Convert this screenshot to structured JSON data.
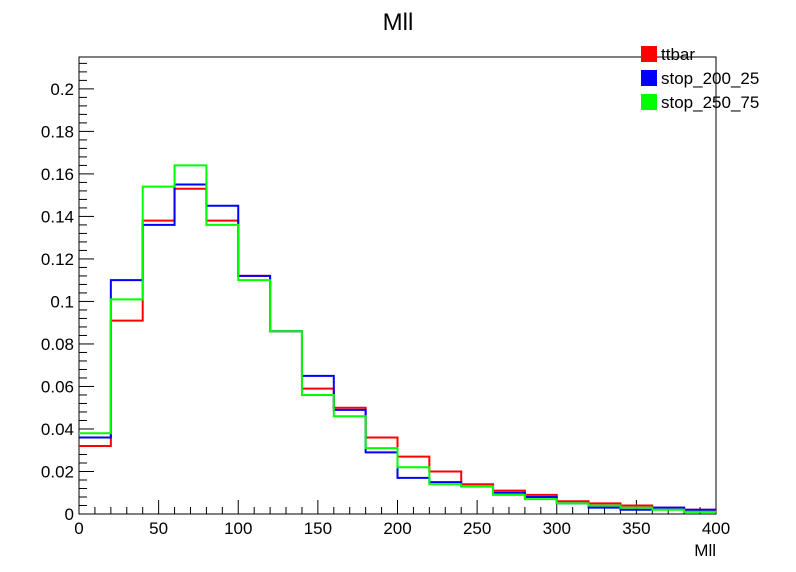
{
  "chart_data": {
    "type": "histogram",
    "title": "Mll",
    "xlabel": "Mll",
    "ylabel": "",
    "xlim": [
      0,
      400
    ],
    "ylim": [
      0,
      0.215
    ],
    "bin_edges": [
      0,
      20,
      40,
      60,
      80,
      100,
      120,
      140,
      160,
      180,
      200,
      220,
      240,
      260,
      280,
      300,
      320,
      340,
      360,
      380,
      400
    ],
    "x_ticks": [
      0,
      50,
      100,
      150,
      200,
      250,
      300,
      350,
      400
    ],
    "y_ticks": [
      0,
      0.02,
      0.04,
      0.06,
      0.08,
      0.1,
      0.12,
      0.14,
      0.16,
      0.18,
      0.2
    ],
    "grid": false,
    "legend_position": "top-right",
    "series": [
      {
        "name": "ttbar",
        "color": "#ff0000",
        "values": [
          0.032,
          0.091,
          0.138,
          0.153,
          0.138,
          0.112,
          0.086,
          0.059,
          0.05,
          0.036,
          0.027,
          0.02,
          0.014,
          0.011,
          0.009,
          0.006,
          0.005,
          0.004,
          0.003,
          0.002
        ]
      },
      {
        "name": "stop_200_25",
        "color": "#0000ff",
        "values": [
          0.036,
          0.11,
          0.136,
          0.155,
          0.145,
          0.112,
          0.086,
          0.065,
          0.049,
          0.029,
          0.017,
          0.015,
          0.013,
          0.01,
          0.008,
          0.005,
          0.003,
          0.002,
          0.003,
          0.002
        ]
      },
      {
        "name": "stop_250_75",
        "color": "#00ff00",
        "values": [
          0.038,
          0.101,
          0.154,
          0.164,
          0.136,
          0.11,
          0.086,
          0.056,
          0.046,
          0.031,
          0.022,
          0.014,
          0.013,
          0.009,
          0.007,
          0.005,
          0.004,
          0.003,
          0.002,
          0.001
        ]
      }
    ]
  }
}
